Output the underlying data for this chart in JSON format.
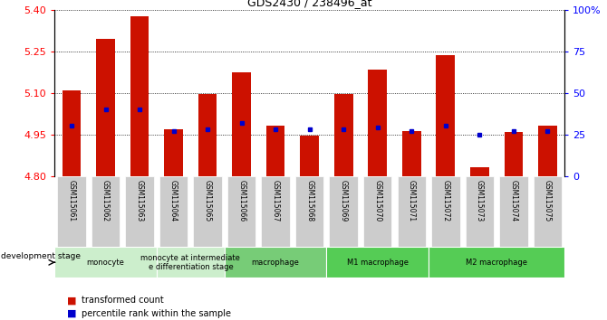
{
  "title": "GDS2430 / 238496_at",
  "samples": [
    "GSM115061",
    "GSM115062",
    "GSM115063",
    "GSM115064",
    "GSM115065",
    "GSM115066",
    "GSM115067",
    "GSM115068",
    "GSM115069",
    "GSM115070",
    "GSM115071",
    "GSM115072",
    "GSM115073",
    "GSM115074",
    "GSM115075"
  ],
  "red_values": [
    5.11,
    5.295,
    5.375,
    4.968,
    5.095,
    5.175,
    4.982,
    4.945,
    5.095,
    5.185,
    4.962,
    5.235,
    4.83,
    4.958,
    4.982
  ],
  "blue_pct": [
    30,
    40,
    40,
    27,
    28,
    32,
    28,
    28,
    28,
    29,
    27,
    30,
    25,
    27,
    27
  ],
  "ymin": 4.8,
  "ymax": 5.4,
  "yticks": [
    4.8,
    4.95,
    5.1,
    5.25,
    5.4
  ],
  "y2min": 0,
  "y2max": 100,
  "y2ticks": [
    0,
    25,
    50,
    75,
    100
  ],
  "bar_color": "#cc1100",
  "dot_color": "#0000cc",
  "baseline": 4.8,
  "bar_width": 0.55,
  "groups": [
    {
      "label": "monocyte",
      "start": 0,
      "end": 2,
      "color": "#cceecc"
    },
    {
      "label": "monocyte at intermediate\ne differentiation stage",
      "start": 3,
      "end": 4,
      "color": "#cceecc"
    },
    {
      "label": "macrophage",
      "start": 5,
      "end": 7,
      "color": "#77cc77"
    },
    {
      "label": "M1 macrophage",
      "start": 8,
      "end": 10,
      "color": "#55cc55"
    },
    {
      "label": "M2 macrophage",
      "start": 11,
      "end": 14,
      "color": "#55cc55"
    }
  ],
  "tick_bg_color": "#cccccc",
  "legend_red_label": "transformed count",
  "legend_blue_label": "percentile rank within the sample",
  "dev_stage_label": "development stage",
  "grid_lines": [
    4.95,
    5.1,
    5.25
  ],
  "fig_width": 6.7,
  "fig_height": 3.54,
  "dpi": 100
}
